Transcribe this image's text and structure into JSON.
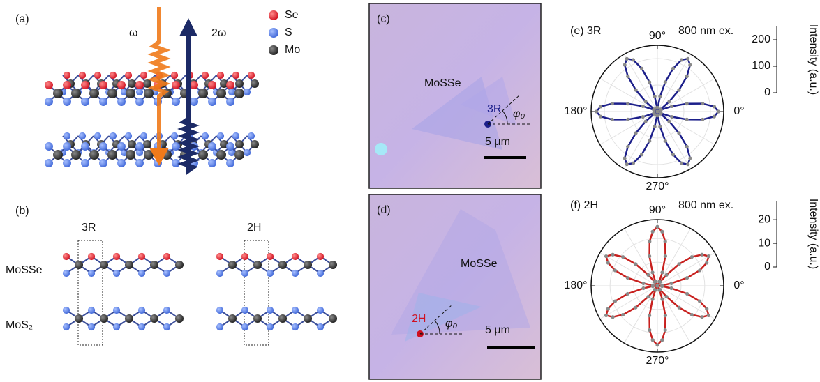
{
  "panels": {
    "a": {
      "label": "(a)",
      "omega": "ω",
      "two_omega": "2ω",
      "legend": [
        "Se",
        "S",
        "Mo"
      ]
    },
    "b": {
      "label": "(b)",
      "stack_3r": "3R",
      "stack_2h": "2H",
      "top_layer": "MoSSe",
      "bottom_layer": "MoS₂"
    },
    "c": {
      "label": "(c)",
      "material": "MoSSe",
      "stack": "3R",
      "angle": "φ₀",
      "scale": "5 μm"
    },
    "d": {
      "label": "(d)",
      "material": "MoSSe",
      "stack": "2H",
      "angle": "φ₀",
      "scale": "5 μm"
    }
  },
  "chart_data": [
    {
      "type": "polar",
      "title": "(e) 3R",
      "annotation": "800 nm ex.",
      "ylabel": "Intensity (a.u.)",
      "color": "#1c1f8a",
      "x": [
        0,
        5,
        10,
        15,
        20,
        25,
        30,
        35,
        40,
        45,
        50,
        55,
        60,
        65,
        70,
        75,
        80,
        85,
        90,
        95,
        100,
        105,
        110,
        115,
        120,
        125,
        130,
        135,
        140,
        145,
        150,
        155,
        160,
        165,
        170,
        175,
        180,
        185,
        190,
        195,
        200,
        205,
        210,
        215,
        220,
        225,
        230,
        235,
        240,
        245,
        250,
        255,
        260,
        265,
        270,
        275,
        280,
        285,
        290,
        295,
        300,
        305,
        310,
        315,
        320,
        325,
        330,
        335,
        340,
        345,
        350,
        355
      ],
      "values": [
        230,
        215,
        173,
        115,
        58,
        15,
        0,
        15,
        58,
        115,
        173,
        215,
        230,
        215,
        173,
        115,
        58,
        15,
        0,
        15,
        58,
        115,
        173,
        215,
        230,
        215,
        173,
        115,
        58,
        15,
        0,
        15,
        58,
        115,
        173,
        215,
        230,
        215,
        173,
        115,
        58,
        15,
        0,
        15,
        58,
        115,
        173,
        215,
        230,
        215,
        173,
        115,
        58,
        15,
        0,
        15,
        58,
        115,
        173,
        215,
        230,
        215,
        173,
        115,
        58,
        15,
        0,
        15,
        58,
        115,
        173,
        215
      ],
      "xticks": [
        {
          "value": 0,
          "label": "0°"
        },
        {
          "value": 90,
          "label": "90°"
        },
        {
          "value": 180,
          "label": "180°"
        },
        {
          "value": 270,
          "label": "270°"
        }
      ],
      "ylim": [
        0,
        250
      ],
      "yticks": [
        0,
        100,
        200
      ]
    },
    {
      "type": "polar",
      "title": "(f) 2H",
      "annotation": "800 nm ex.",
      "ylabel": "Intensity (a.u.)",
      "color": "#c8201e",
      "x": [
        0,
        5,
        10,
        15,
        20,
        25,
        30,
        35,
        40,
        45,
        50,
        55,
        60,
        65,
        70,
        75,
        80,
        85,
        90,
        95,
        100,
        105,
        110,
        115,
        120,
        125,
        130,
        135,
        140,
        145,
        150,
        155,
        160,
        165,
        170,
        175,
        180,
        185,
        190,
        195,
        200,
        205,
        210,
        215,
        220,
        225,
        230,
        235,
        240,
        245,
        250,
        255,
        260,
        265,
        270,
        275,
        280,
        285,
        290,
        295,
        300,
        305,
        310,
        315,
        320,
        325,
        330,
        335,
        340,
        345,
        350,
        355
      ],
      "values": [
        0,
        2,
        6,
        13,
        19,
        23,
        25,
        23,
        19,
        13,
        6,
        2,
        0,
        2,
        6,
        13,
        19,
        23,
        25,
        23,
        19,
        13,
        6,
        2,
        0,
        2,
        6,
        13,
        19,
        23,
        25,
        23,
        19,
        13,
        6,
        2,
        0,
        2,
        6,
        13,
        19,
        23,
        25,
        23,
        19,
        13,
        6,
        2,
        0,
        2,
        6,
        13,
        19,
        23,
        25,
        23,
        19,
        13,
        6,
        2,
        0,
        2,
        6,
        13,
        19,
        23,
        25,
        23,
        19,
        13,
        6,
        2
      ],
      "xticks": [
        {
          "value": 0,
          "label": "0°"
        },
        {
          "value": 90,
          "label": "90°"
        },
        {
          "value": 180,
          "label": "180°"
        },
        {
          "value": 270,
          "label": "270°"
        }
      ],
      "ylim": [
        0,
        28
      ],
      "yticks": [
        0,
        10,
        20
      ]
    }
  ]
}
